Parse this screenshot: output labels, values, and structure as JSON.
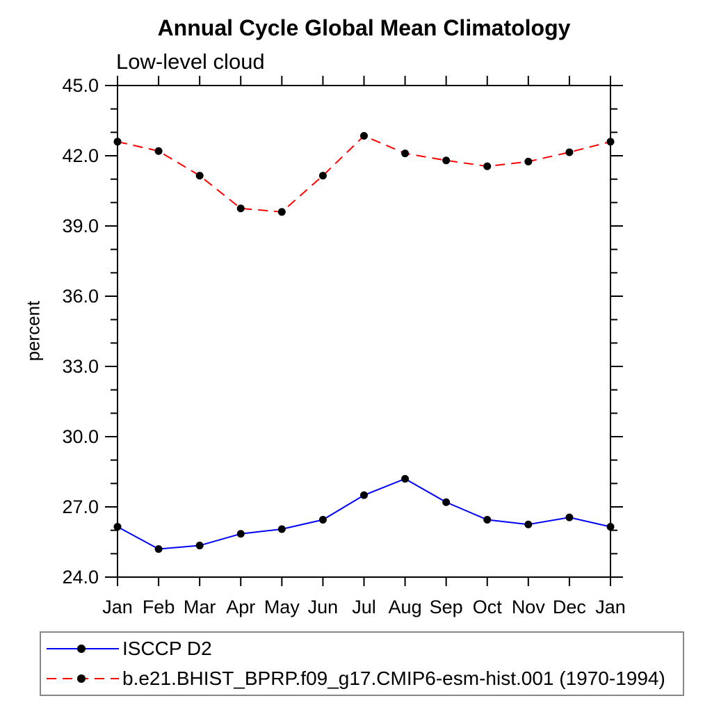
{
  "chart_data": {
    "type": "line",
    "title": "Annual Cycle Global Mean Climatology",
    "subtitle": "Low-level cloud",
    "ylabel": "percent",
    "xlabel": "",
    "x_categories": [
      "Jan",
      "Feb",
      "Mar",
      "Apr",
      "May",
      "Jun",
      "Jul",
      "Aug",
      "Sep",
      "Oct",
      "Nov",
      "Dec",
      "Jan"
    ],
    "ylim": [
      24.0,
      45.0
    ],
    "ytick_major_interval": 3.0,
    "ytick_minor_interval": 1.0,
    "ytick_labels": [
      "24.0",
      "27.0",
      "30.0",
      "33.0",
      "36.0",
      "39.0",
      "42.0",
      "45.0"
    ],
    "grid": false,
    "frame_color": "#000000",
    "marker_shape": "filled-circle",
    "legend_position": "bottom-left-box",
    "series": [
      {
        "name": "ISCCP D2",
        "color": "#0000ff",
        "style": "solid",
        "marker_color": "#000000",
        "values": [
          26.15,
          25.2,
          25.35,
          25.85,
          26.05,
          26.45,
          27.5,
          28.2,
          27.2,
          26.45,
          26.25,
          26.55,
          26.15
        ]
      },
      {
        "name": "b.e21.BHIST_BPRP.f09_g17.CMIP6-esm-hist.001 (1970-1994)",
        "color": "#ff0000",
        "style": "dashed",
        "marker_color": "#000000",
        "values": [
          42.6,
          42.2,
          41.15,
          39.75,
          39.6,
          41.15,
          42.85,
          42.1,
          41.8,
          41.55,
          41.75,
          42.15,
          42.6
        ]
      }
    ]
  }
}
